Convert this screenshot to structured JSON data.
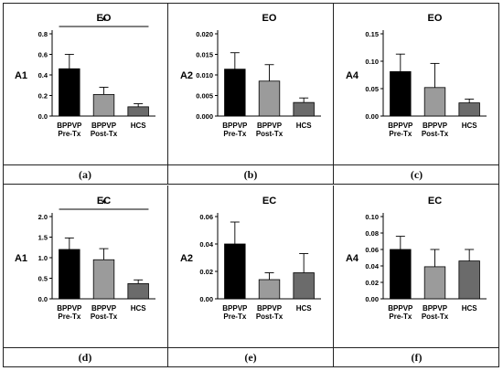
{
  "colors": {
    "pre": "#000000",
    "post": "#9b9b9b",
    "hcs": "#6b6b6b",
    "axis": "#000000"
  },
  "chart_data": [
    {
      "id": "a",
      "type": "bar",
      "title": "EO",
      "ylabel": "A1",
      "panel_label": "(a)",
      "categories": [
        "BPPVP\nPre-Tx",
        "BPPVP\nPost-Tx",
        "HCS"
      ],
      "values": [
        0.46,
        0.21,
        0.09
      ],
      "errors": [
        0.14,
        0.07,
        0.03
      ],
      "ylim": [
        0,
        0.8
      ],
      "yticks": [
        "0.0",
        "0.2",
        "0.4",
        "0.6",
        "0.8"
      ],
      "significance": {
        "from": 0,
        "to": 2,
        "label": "*"
      }
    },
    {
      "id": "b",
      "type": "bar",
      "title": "EO",
      "ylabel": "A2",
      "panel_label": "(b)",
      "categories": [
        "BPPVP\nPre-Tx",
        "BPPVP\nPost-Tx",
        "HCS"
      ],
      "values": [
        0.0114,
        0.0085,
        0.0033
      ],
      "errors": [
        0.004,
        0.004,
        0.0011
      ],
      "ylim": [
        0,
        0.02
      ],
      "yticks": [
        "0.000",
        "0.005",
        "0.010",
        "0.015",
        "0.020"
      ]
    },
    {
      "id": "c",
      "type": "bar",
      "title": "EO",
      "ylabel": "A4",
      "panel_label": "(c)",
      "categories": [
        "BPPVP\nPre-Tx",
        "BPPVP\nPost-Tx",
        "HCS"
      ],
      "values": [
        0.081,
        0.052,
        0.024
      ],
      "errors": [
        0.032,
        0.044,
        0.007
      ],
      "ylim": [
        0,
        0.15
      ],
      "yticks": [
        "0.00",
        "0.05",
        "0.10",
        "0.15"
      ]
    },
    {
      "id": "d",
      "type": "bar",
      "title": "EC",
      "ylabel": "A1",
      "panel_label": "(d)",
      "categories": [
        "BPPVP\nPre-Tx",
        "BPPVP\nPost-Tx",
        "HCS"
      ],
      "values": [
        1.2,
        0.95,
        0.37
      ],
      "errors": [
        0.28,
        0.27,
        0.09
      ],
      "ylim": [
        0,
        2.0
      ],
      "yticks": [
        "0.0",
        "0.5",
        "1.0",
        "1.5",
        "2.0"
      ],
      "significance": {
        "from": 0,
        "to": 2,
        "label": "*"
      }
    },
    {
      "id": "e",
      "type": "bar",
      "title": "EC",
      "ylabel": "A2",
      "panel_label": "(e)",
      "categories": [
        "BPPVP\nPre-Tx",
        "BPPVP\nPost-Tx",
        "HCS"
      ],
      "values": [
        0.04,
        0.014,
        0.019
      ],
      "errors": [
        0.016,
        0.005,
        0.014
      ],
      "ylim": [
        0,
        0.06
      ],
      "yticks": [
        "0.00",
        "0.02",
        "0.04",
        "0.06"
      ]
    },
    {
      "id": "f",
      "type": "bar",
      "title": "EC",
      "ylabel": "A4",
      "panel_label": "(f)",
      "categories": [
        "BPPVP\nPre-Tx",
        "BPPVP\nPost-Tx",
        "HCS"
      ],
      "values": [
        0.06,
        0.039,
        0.046
      ],
      "errors": [
        0.016,
        0.021,
        0.014
      ],
      "ylim": [
        0,
        0.1
      ],
      "yticks": [
        "0.00",
        "0.02",
        "0.04",
        "0.06",
        "0.08",
        "0.10"
      ]
    }
  ]
}
